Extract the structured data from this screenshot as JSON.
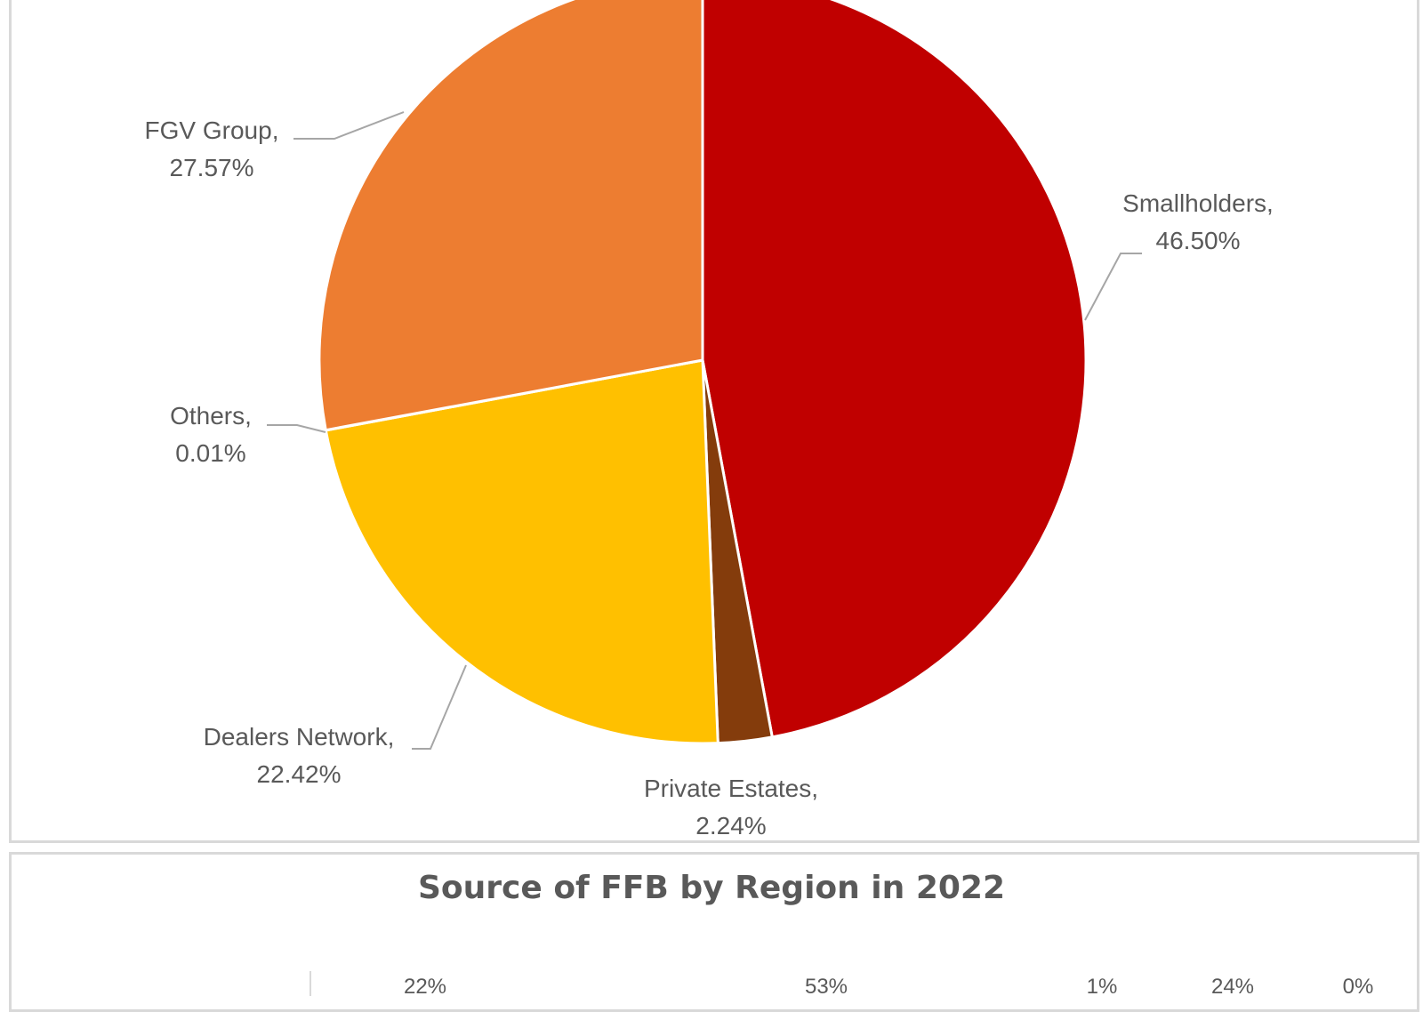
{
  "chart_data": [
    {
      "type": "pie",
      "title": "",
      "slices": [
        {
          "label": "Smallholders,",
          "value_label": "46.50%",
          "value": 46.5,
          "color": "#C00000"
        },
        {
          "label": "Private Estates,",
          "value_label": "2.24%",
          "value": 2.24,
          "color": "#843C0C"
        },
        {
          "label": "Dealers Network,",
          "value_label": "22.42%",
          "value": 22.42,
          "color": "#FFC000"
        },
        {
          "label": "Others,",
          "value_label": "0.01%",
          "value": 0.01,
          "color": "#A5A5A5"
        },
        {
          "label": "FGV Group,",
          "value_label": "27.57%",
          "value": 27.57,
          "color": "#ED7D31"
        }
      ]
    },
    {
      "type": "bar",
      "title": "Source of FFB by Region in 2022",
      "data_labels": [
        "22%",
        "53%",
        "1%",
        "24%",
        "0%"
      ]
    }
  ]
}
